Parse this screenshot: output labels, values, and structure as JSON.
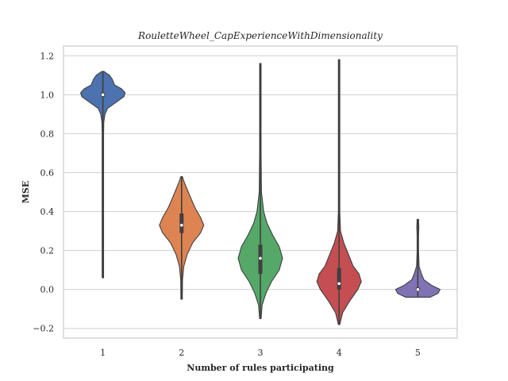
{
  "chart_data": {
    "type": "violin",
    "title": "RouletteWheel_CapExperienceWithDimensionality",
    "xlabel": "Number of rules participating",
    "ylabel": "MSE",
    "categories": [
      "1",
      "2",
      "3",
      "4",
      "5"
    ],
    "ylim": [
      -0.25,
      1.25
    ],
    "yticks": [
      -0.2,
      0.0,
      0.2,
      0.4,
      0.6,
      0.8,
      1.0,
      1.2
    ],
    "ytick_labels": [
      "−0.2",
      "0.0",
      "0.2",
      "0.4",
      "0.6",
      "0.8",
      "1.0",
      "1.2"
    ],
    "grid": "horizontal",
    "series": [
      {
        "category": "1",
        "color": "#4c72b0",
        "min": 0.06,
        "max": 1.12,
        "q1": 0.99,
        "median": 1.0,
        "q3": 1.01,
        "density": [
          [
            0.06,
            0.004
          ],
          [
            0.2,
            0.004
          ],
          [
            0.4,
            0.005
          ],
          [
            0.5,
            0.006
          ],
          [
            0.6,
            0.007
          ],
          [
            0.7,
            0.008
          ],
          [
            0.8,
            0.012
          ],
          [
            0.86,
            0.04
          ],
          [
            0.9,
            0.09
          ],
          [
            0.93,
            0.2
          ],
          [
            0.96,
            0.55
          ],
          [
            0.99,
            0.9
          ],
          [
            1.01,
            0.95
          ],
          [
            1.03,
            0.8
          ],
          [
            1.05,
            0.5
          ],
          [
            1.08,
            0.4
          ],
          [
            1.1,
            0.28
          ],
          [
            1.12,
            0.04
          ]
        ]
      },
      {
        "category": "2",
        "color": "#dd8452",
        "min": -0.05,
        "max": 0.58,
        "q1": 0.29,
        "median": 0.33,
        "q3": 0.39,
        "density": [
          [
            -0.05,
            0.01
          ],
          [
            0.05,
            0.04
          ],
          [
            0.12,
            0.1
          ],
          [
            0.18,
            0.25
          ],
          [
            0.24,
            0.5
          ],
          [
            0.29,
            0.85
          ],
          [
            0.33,
            1.0
          ],
          [
            0.37,
            0.85
          ],
          [
            0.42,
            0.6
          ],
          [
            0.46,
            0.45
          ],
          [
            0.5,
            0.3
          ],
          [
            0.55,
            0.12
          ],
          [
            0.58,
            0.02
          ]
        ]
      },
      {
        "category": "3",
        "color": "#55a868",
        "min": -0.15,
        "max": 1.16,
        "q1": 0.08,
        "median": 0.16,
        "q3": 0.23,
        "density": [
          [
            -0.15,
            0.02
          ],
          [
            -0.08,
            0.08
          ],
          [
            -0.02,
            0.25
          ],
          [
            0.04,
            0.5
          ],
          [
            0.1,
            0.85
          ],
          [
            0.16,
            1.0
          ],
          [
            0.22,
            0.85
          ],
          [
            0.28,
            0.55
          ],
          [
            0.34,
            0.3
          ],
          [
            0.4,
            0.15
          ],
          [
            0.5,
            0.05
          ],
          [
            0.7,
            0.02
          ],
          [
            1.0,
            0.01
          ],
          [
            1.16,
            0.01
          ]
        ]
      },
      {
        "category": "4",
        "color": "#c44e52",
        "min": -0.18,
        "max": 1.18,
        "q1": 0.0,
        "median": 0.03,
        "q3": 0.11,
        "density": [
          [
            -0.18,
            0.03
          ],
          [
            -0.12,
            0.15
          ],
          [
            -0.06,
            0.45
          ],
          [
            0.0,
            0.8
          ],
          [
            0.04,
            0.95
          ],
          [
            0.08,
            0.85
          ],
          [
            0.12,
            0.6
          ],
          [
            0.18,
            0.4
          ],
          [
            0.24,
            0.2
          ],
          [
            0.3,
            0.06
          ],
          [
            0.4,
            0.02
          ],
          [
            0.8,
            0.01
          ],
          [
            1.18,
            0.01
          ]
        ]
      },
      {
        "category": "5",
        "color": "#8172b3",
        "min": -0.04,
        "max": 0.36,
        "q1": -0.005,
        "median": 0.0,
        "q3": 0.01,
        "density": [
          [
            -0.04,
            0.6
          ],
          [
            -0.02,
            1.0
          ],
          [
            0.0,
            1.1
          ],
          [
            0.02,
            0.7
          ],
          [
            0.05,
            0.3
          ],
          [
            0.08,
            0.18
          ],
          [
            0.12,
            0.06
          ],
          [
            0.2,
            0.03
          ],
          [
            0.28,
            0.03
          ],
          [
            0.32,
            0.05
          ],
          [
            0.36,
            0.02
          ]
        ]
      }
    ]
  }
}
